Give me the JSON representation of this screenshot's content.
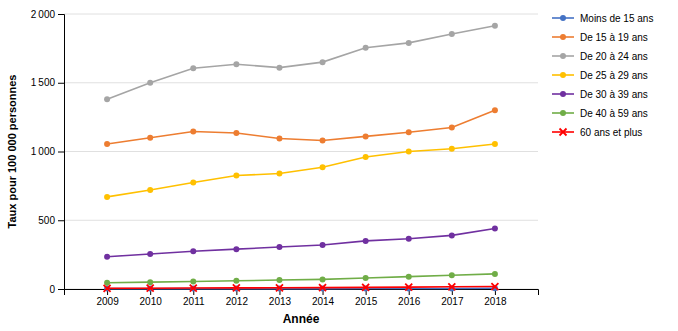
{
  "chart_data": {
    "type": "line",
    "xlabel": "Année",
    "ylabel": "Taux pour 100 000 personnes",
    "x": [
      2009,
      2010,
      2011,
      2012,
      2013,
      2014,
      2015,
      2016,
      2017,
      2018
    ],
    "xlim": [
      2008,
      2019
    ],
    "xticks": [
      2009,
      2010,
      2011,
      2012,
      2013,
      2014,
      2015,
      2016,
      2017,
      2018
    ],
    "ylim": [
      0,
      2000
    ],
    "yticks": [
      0,
      500,
      {
        "value": 1000,
        "label": "1 000"
      },
      {
        "value": 1500,
        "label": "1 500"
      },
      {
        "value": 2000,
        "label": "2 000"
      }
    ],
    "grid": true,
    "legend": "right",
    "series": [
      {
        "name": "Moins de 15 ans",
        "color": "#4472C4",
        "marker": "circle",
        "values": [
          3,
          3,
          3,
          3,
          3,
          3,
          4,
          4,
          4,
          5
        ]
      },
      {
        "name": "De 15 à 19 ans",
        "color": "#ED7D31",
        "marker": "circle",
        "values": [
          1055,
          1100,
          1145,
          1135,
          1095,
          1080,
          1110,
          1140,
          1175,
          1300
        ]
      },
      {
        "name": "De 20 à 24 ans",
        "color": "#A5A5A5",
        "marker": "circle",
        "values": [
          1380,
          1500,
          1605,
          1635,
          1610,
          1650,
          1755,
          1790,
          1855,
          1915
        ]
      },
      {
        "name": "De 25 à 29 ans",
        "color": "#FFC000",
        "marker": "circle",
        "values": [
          670,
          720,
          775,
          825,
          840,
          885,
          960,
          1000,
          1020,
          1055
        ]
      },
      {
        "name": "De 30 à 39 ans",
        "color": "#7030A0",
        "marker": "circle",
        "values": [
          235,
          255,
          275,
          290,
          305,
          320,
          350,
          365,
          390,
          440
        ]
      },
      {
        "name": "De 40 à 59 ans",
        "color": "#70AD47",
        "marker": "circle",
        "values": [
          45,
          50,
          55,
          60,
          65,
          70,
          80,
          90,
          100,
          110
        ]
      },
      {
        "name": "60 ans et plus",
        "color": "#FF0000",
        "marker": "x",
        "values": [
          5,
          6,
          7,
          8,
          9,
          10,
          12,
          14,
          16,
          18
        ]
      }
    ]
  }
}
